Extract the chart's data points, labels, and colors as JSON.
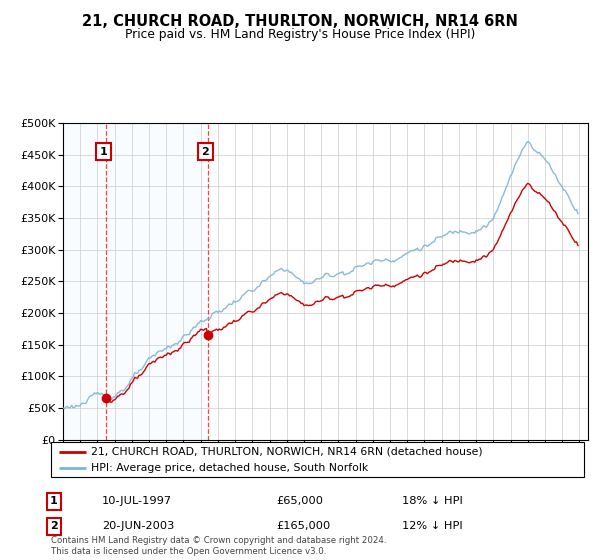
{
  "title": "21, CHURCH ROAD, THURLTON, NORWICH, NR14 6RN",
  "subtitle": "Price paid vs. HM Land Registry's House Price Index (HPI)",
  "legend_line1": "21, CHURCH ROAD, THURLTON, NORWICH, NR14 6RN (detached house)",
  "legend_line2": "HPI: Average price, detached house, South Norfolk",
  "purchase1_date": "10-JUL-1997",
  "purchase1_price": 65000,
  "purchase1_label": "18% ↓ HPI",
  "purchase2_date": "20-JUN-2003",
  "purchase2_price": 165000,
  "purchase2_label": "12% ↓ HPI",
  "footer": "Contains HM Land Registry data © Crown copyright and database right 2024.\nThis data is licensed under the Open Government Licence v3.0.",
  "hpi_color": "#7ab4d8",
  "price_color": "#cc0000",
  "shade_color": "#ddeeff",
  "grid_color": "#cccccc",
  "ylim": [
    0,
    500000
  ],
  "yticks": [
    0,
    50000,
    100000,
    150000,
    200000,
    250000,
    300000,
    350000,
    400000,
    450000,
    500000
  ],
  "xstart_year": 1995,
  "xend_year": 2025
}
